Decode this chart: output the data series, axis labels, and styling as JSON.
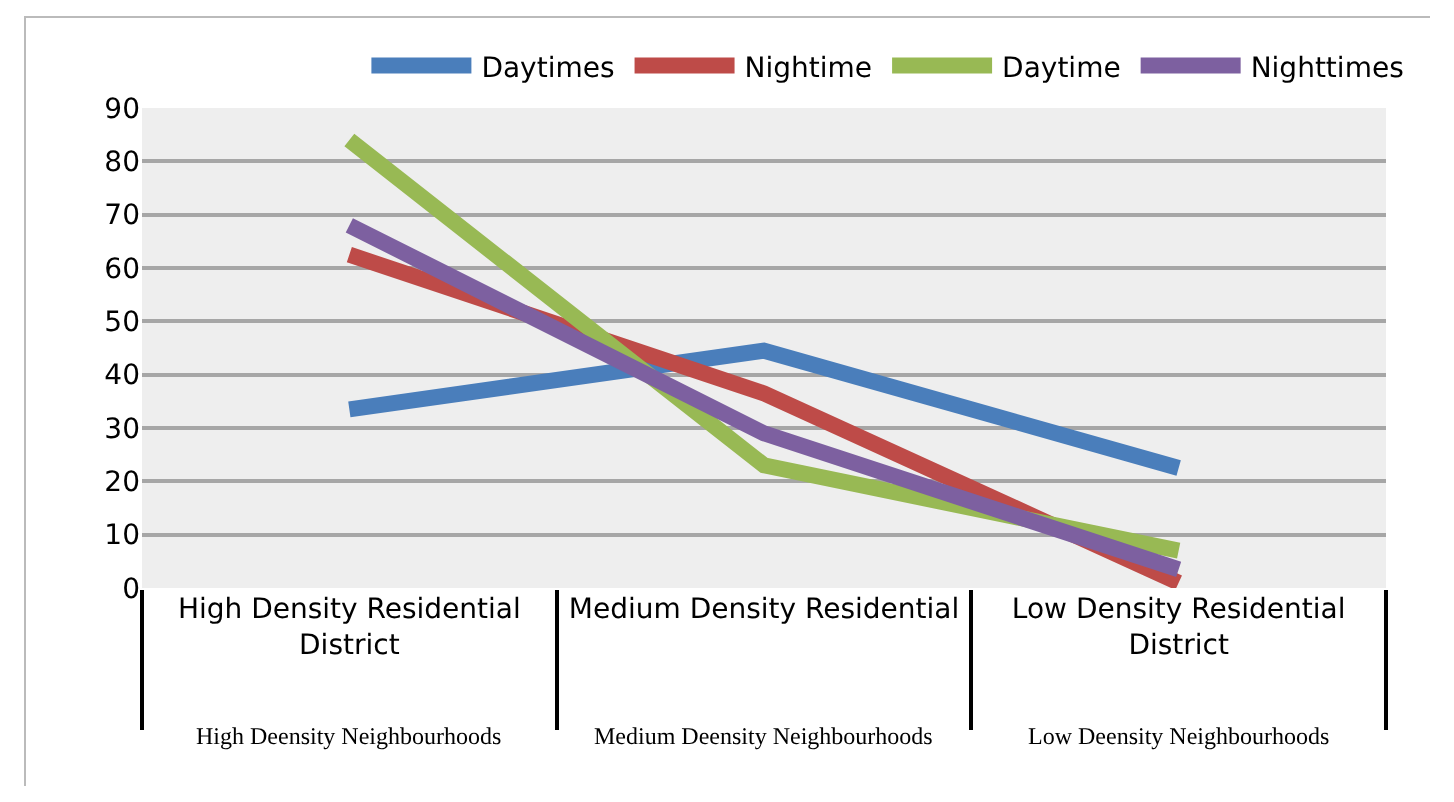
{
  "chart_data": {
    "type": "line",
    "categories": [
      "High Density Residential District",
      "Medium Density Residential",
      "Low Density Residential District"
    ],
    "series": [
      {
        "name": "Daytimes",
        "color": "#4a7ebb",
        "values": [
          33.5,
          44.5,
          22.5
        ]
      },
      {
        "name": "Nightime",
        "color": "#be4b48",
        "values": [
          62.5,
          36.5,
          1
        ]
      },
      {
        "name": "Daytime",
        "color": "#98b954",
        "values": [
          84,
          23,
          7
        ]
      },
      {
        "name": "Nighttimes",
        "color": "#7d60a0",
        "values": [
          68,
          29,
          3.5
        ]
      }
    ],
    "annotations": [
      "High Deensity Neighbourhoods",
      "Medium Deensity Neighbourhoods",
      "Low Deensity Neighbourhoods"
    ],
    "ylim": [
      0,
      90
    ],
    "yticks": [
      0,
      10,
      20,
      30,
      40,
      50,
      60,
      70,
      80,
      90
    ],
    "grid": "y",
    "legend": "top",
    "marker": "none",
    "line_style": "solid"
  }
}
